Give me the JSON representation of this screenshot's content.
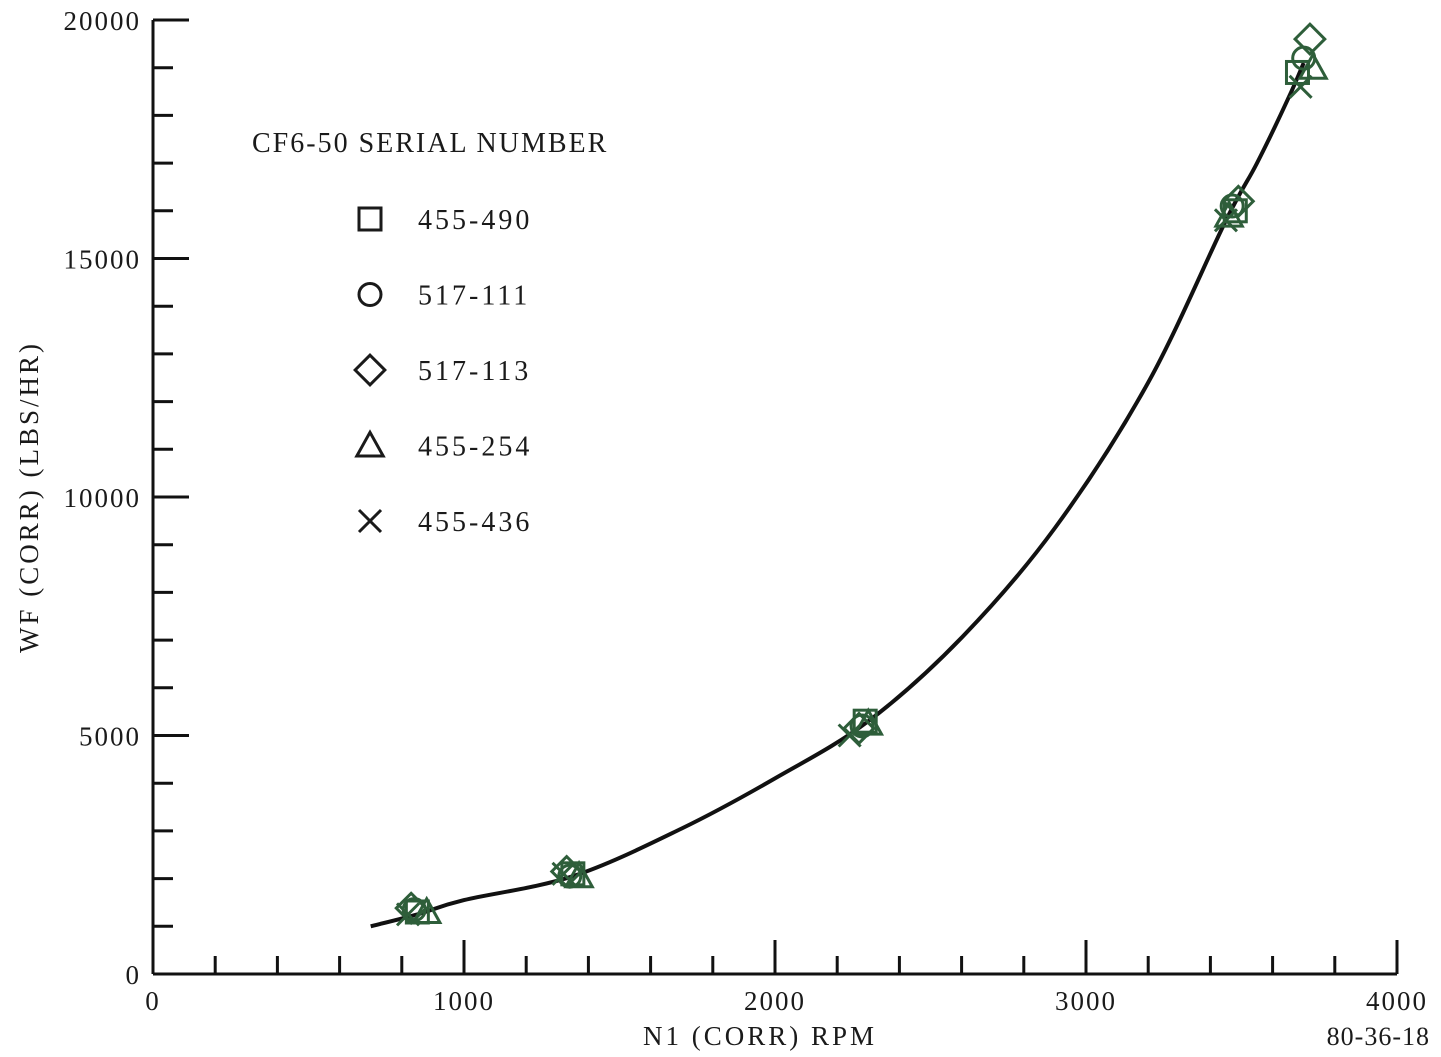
{
  "chart_data": {
    "type": "scatter",
    "xlabel": "N1 (CORR) RPM",
    "ylabel": "WF (CORR) (LBS/HR)",
    "xlim": [
      0,
      4000
    ],
    "ylim": [
      0,
      20000
    ],
    "x_ticks": [
      "0",
      "1000",
      "2000",
      "3000",
      "4000"
    ],
    "y_ticks": [
      "0",
      "5000",
      "10000",
      "15000",
      "20000"
    ],
    "figure_id": "80-36-18",
    "legend_title": "CF6-50 SERIAL NUMBER",
    "legend_placement": "top-left",
    "grid": false,
    "marker_color": "#2e5e3a",
    "curve_color": "#111111",
    "fit_curve": {
      "x": [
        700,
        850,
        1000,
        1350,
        1700,
        2000,
        2300,
        2600,
        2900,
        3200,
        3450,
        3550,
        3650,
        3700
      ],
      "y": [
        1000,
        1250,
        1550,
        2050,
        3050,
        4100,
        5300,
        7050,
        9350,
        12400,
        15800,
        17000,
        18350,
        19100
      ]
    },
    "series": [
      {
        "name": "455-490",
        "marker": "square",
        "x": [
          850,
          1350,
          2290,
          3480,
          3680
        ],
        "y": [
          1300,
          2100,
          5300,
          16000,
          18900
        ]
      },
      {
        "name": "517-111",
        "marker": "circle",
        "x": [
          840,
          1340,
          2280,
          3470,
          3700
        ],
        "y": [
          1350,
          2050,
          5200,
          16100,
          19200
        ]
      },
      {
        "name": "517-113",
        "marker": "diamond",
        "x": [
          830,
          1330,
          2270,
          3490,
          3720
        ],
        "y": [
          1380,
          2150,
          5150,
          16200,
          19600
        ]
      },
      {
        "name": "455-254",
        "marker": "triangle",
        "x": [
          880,
          1370,
          2300,
          3460,
          3730
        ],
        "y": [
          1300,
          2050,
          5250,
          15900,
          19000
        ]
      },
      {
        "name": "455-436",
        "marker": "x",
        "x": [
          820,
          1320,
          2240,
          3450,
          3690
        ],
        "y": [
          1250,
          2100,
          5000,
          15800,
          18600
        ]
      }
    ]
  }
}
